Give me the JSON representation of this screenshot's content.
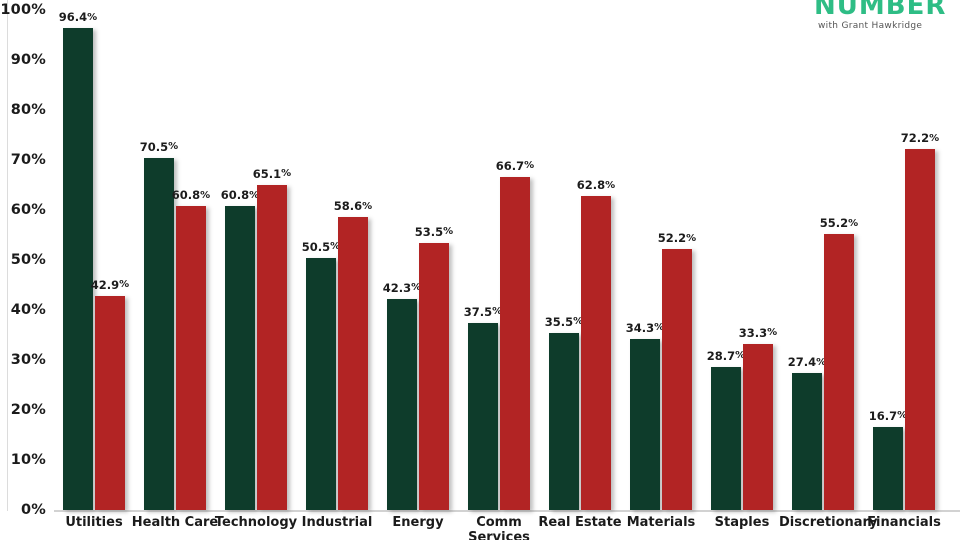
{
  "logo": {
    "title": "NUMBER",
    "subtitle": "with Grant Hawkridge",
    "brand_color": "#2ebd85",
    "subtitle_color": "#555555"
  },
  "chart_data": {
    "type": "bar",
    "title": "",
    "categories": [
      "Utilities",
      "Health Care",
      "Technology",
      "Industrial",
      "Energy",
      "Comm Services",
      "Real Estate",
      "Materials",
      "Staples",
      "Discretionary",
      "Financials"
    ],
    "x_display": [
      "Utilities",
      "Health Care",
      "Technology",
      "Industrial",
      "Energy",
      "Comm\nServices",
      "Real Estate",
      "Materials",
      "Staples",
      "Discretionary",
      "Financials"
    ],
    "series": [
      {
        "name": "green-series",
        "color": "#0e3c2b",
        "values": [
          96.4,
          70.5,
          60.8,
          50.5,
          42.3,
          37.5,
          35.5,
          34.3,
          28.7,
          27.4,
          16.7
        ]
      },
      {
        "name": "red-series",
        "color": "#b22424",
        "values": [
          42.9,
          60.8,
          65.1,
          58.6,
          53.5,
          66.7,
          62.8,
          52.2,
          33.3,
          55.2,
          72.2
        ]
      }
    ],
    "value_labels_shown": true,
    "ylim": [
      0,
      100
    ],
    "yticks": [
      "0%",
      "10%",
      "20%",
      "30%",
      "40%",
      "50%",
      "60%",
      "70%",
      "80%",
      "90%",
      "100%"
    ],
    "grid": false,
    "legend": "none",
    "axis_color": "#d2d2d2",
    "text_color": "#1b1b1b"
  }
}
